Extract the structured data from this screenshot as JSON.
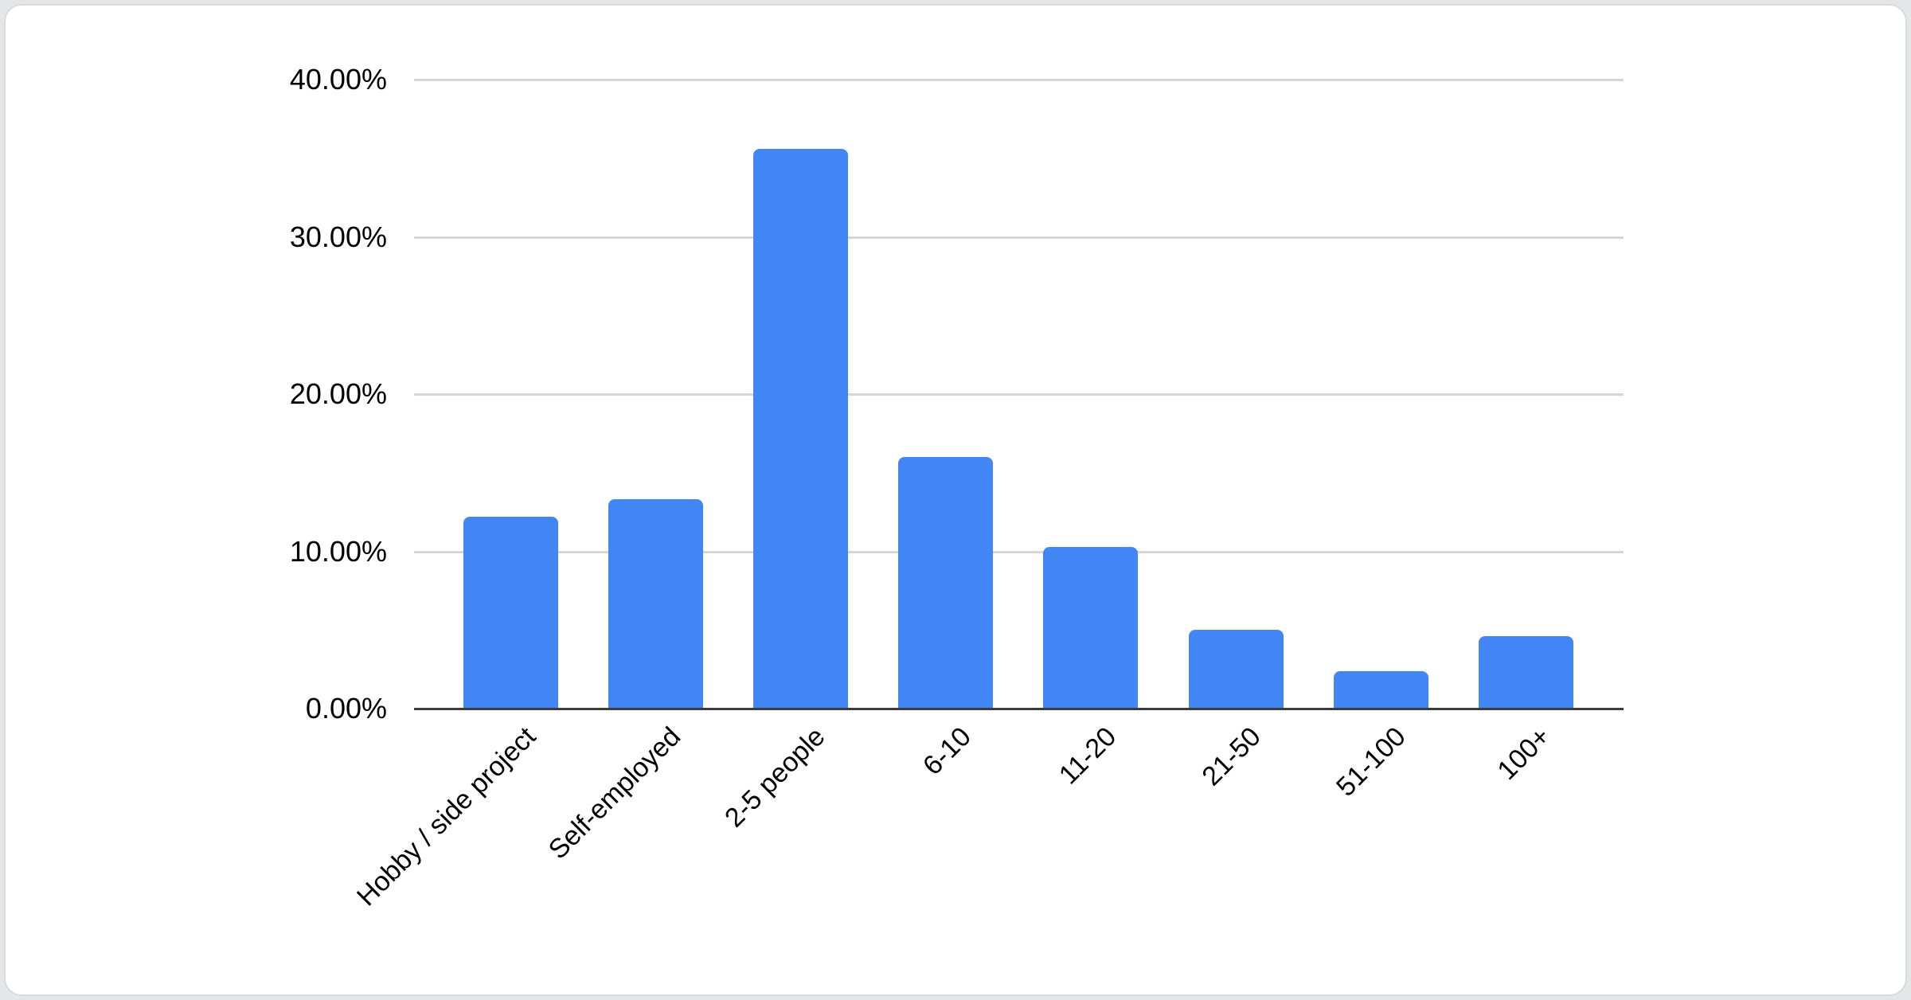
{
  "chart_data": {
    "type": "bar",
    "title": "",
    "xlabel": "",
    "ylabel": "",
    "categories": [
      "Hobby / side project",
      "Self-employed",
      "2-5 people",
      "6-10",
      "11-20",
      "21-50",
      "51-100",
      "100+"
    ],
    "values": [
      12.2,
      13.3,
      35.6,
      16.0,
      10.3,
      5.0,
      2.4,
      4.6
    ],
    "value_unit": "%",
    "ylim": [
      0,
      40
    ],
    "y_ticks": [
      {
        "value": 0,
        "label": "0.00%"
      },
      {
        "value": 10,
        "label": "10.00%"
      },
      {
        "value": 20,
        "label": "20.00%"
      },
      {
        "value": 30,
        "label": "30.00%"
      },
      {
        "value": 40,
        "label": "40.00%"
      }
    ],
    "grid": true,
    "legend": "none",
    "bar_color": "#4285f4"
  },
  "colors": {
    "bar": "#4285f4",
    "gridline": "#d6d6d6",
    "axis_line": "#3c3c3c",
    "label_text": "#000000",
    "card_background": "#ffffff",
    "card_border": "#d8dadc",
    "page_background": "#e4e6e8"
  }
}
